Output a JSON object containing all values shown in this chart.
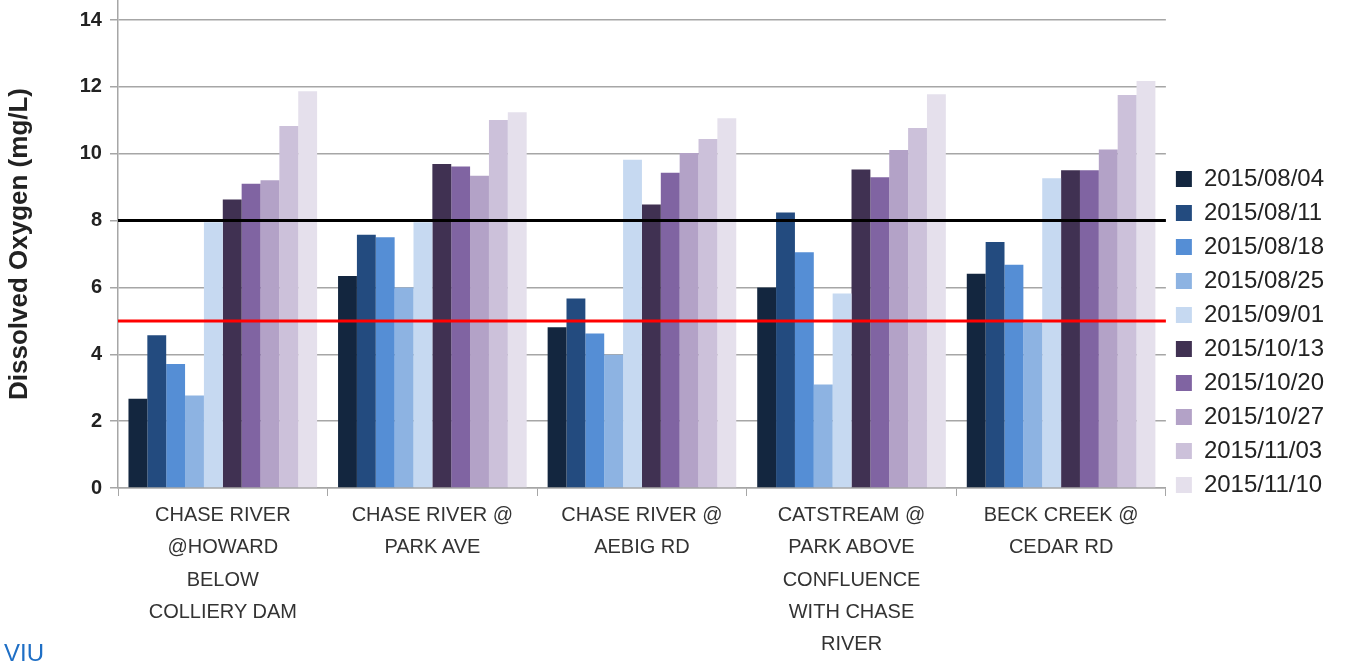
{
  "chart_data": {
    "type": "bar",
    "ylabel": "Dissolved Oxygen (mg/L)",
    "categories": [
      "CHASE RIVER @HOWARD BELOW COLLIERY DAM",
      "CHASE RIVER @ PARK AVE",
      "CHASE RIVER @ AEBIG RD",
      "CATSTREAM @ PARK ABOVE CONFLUENCE WITH CHASE RIVER",
      "BECK CREEK @ CEDAR RD"
    ],
    "series": [
      {
        "name": "2015/08/04",
        "color": "#13263f",
        "values": [
          2.67,
          6.34,
          4.81,
          6.0,
          6.41
        ]
      },
      {
        "name": "2015/08/11",
        "color": "#234b7f",
        "values": [
          4.57,
          7.58,
          5.67,
          8.24,
          7.36
        ]
      },
      {
        "name": "2015/08/18",
        "color": "#558ed5",
        "values": [
          3.71,
          7.5,
          4.62,
          7.05,
          6.68
        ]
      },
      {
        "name": "2015/08/25",
        "color": "#8db3e2",
        "values": [
          2.77,
          6.0,
          3.99,
          3.1,
          4.95
        ]
      },
      {
        "name": "2015/09/01",
        "color": "#c6d9f1",
        "values": [
          7.95,
          7.95,
          9.82,
          5.82,
          9.27
        ]
      },
      {
        "name": "2015/10/13",
        "color": "#403152",
        "values": [
          8.63,
          9.69,
          8.48,
          9.53,
          9.51
        ]
      },
      {
        "name": "2015/10/20",
        "color": "#8064a2",
        "values": [
          9.1,
          9.62,
          9.43,
          9.3,
          9.51
        ]
      },
      {
        "name": "2015/10/27",
        "color": "#b3a2c7",
        "values": [
          9.21,
          9.34,
          10.02,
          10.11,
          10.13
        ]
      },
      {
        "name": "2015/11/03",
        "color": "#ccc1da",
        "values": [
          10.83,
          11.01,
          10.44,
          10.77,
          11.76
        ]
      },
      {
        "name": "2015/11/10",
        "color": "#e5e0ec",
        "values": [
          11.87,
          11.24,
          11.06,
          11.78,
          12.18
        ]
      }
    ],
    "ylim": [
      0,
      14.6
    ],
    "yticks": [
      0,
      2,
      4,
      6,
      8,
      10,
      12,
      14
    ],
    "grid": "y",
    "legend": "right",
    "ref_lines": [
      {
        "axis": "y",
        "value": 8,
        "color": "#000000"
      },
      {
        "axis": "y",
        "value": 5,
        "color": "#ff0000"
      }
    ],
    "annotations": [
      "VIU"
    ]
  }
}
